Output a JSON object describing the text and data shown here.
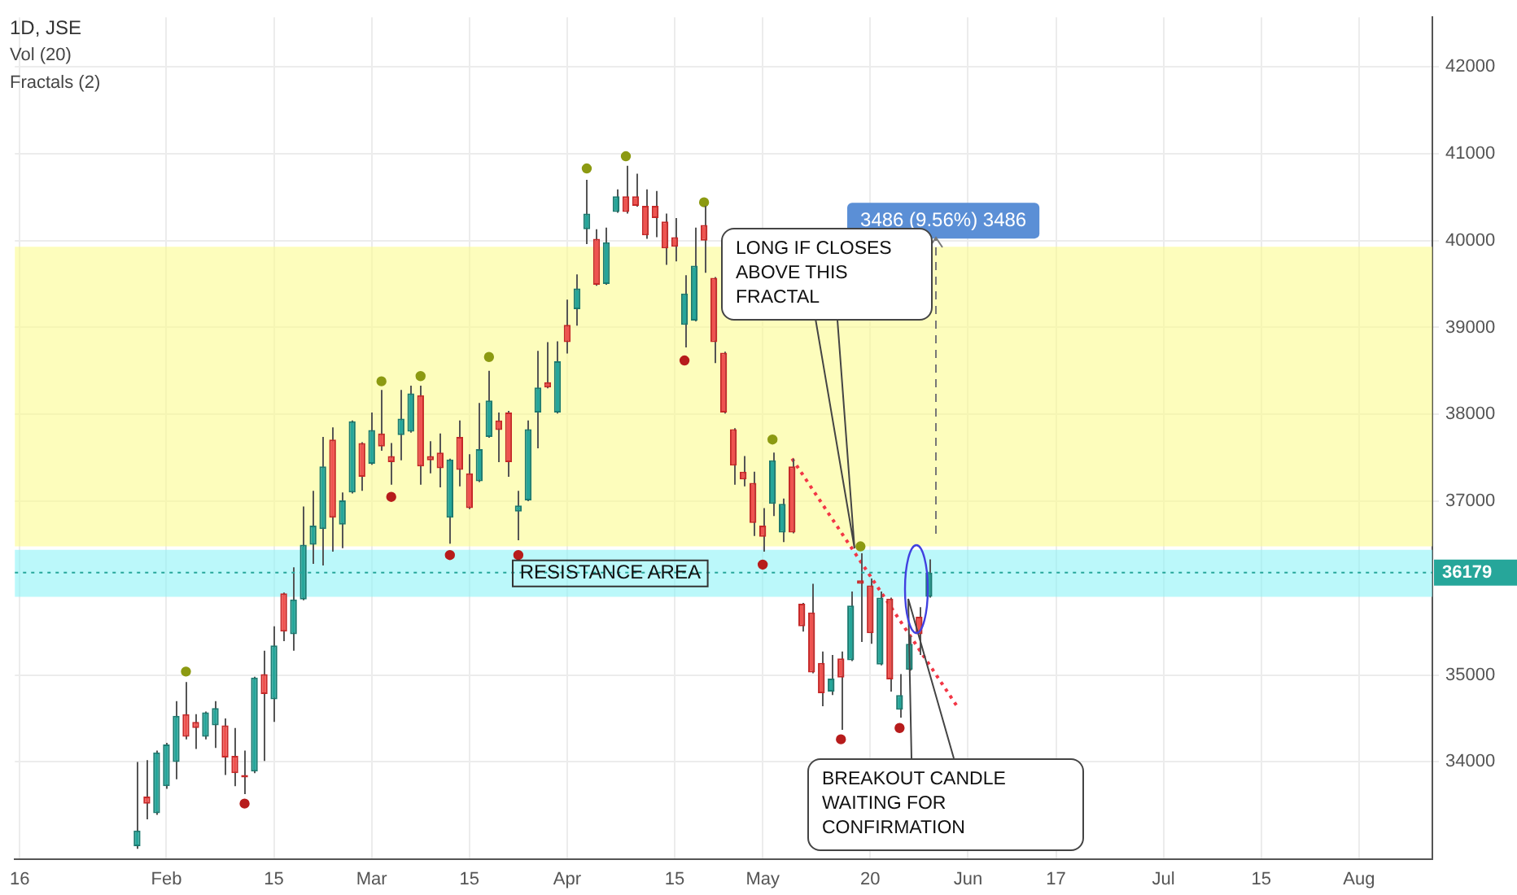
{
  "chart_data": {
    "type": "candlestick",
    "title": "1D, JSE",
    "categories": [
      "16",
      null,
      null,
      null,
      null,
      null,
      null,
      null,
      null,
      null,
      null,
      null,
      null,
      null,
      null,
      "Feb",
      null,
      null,
      null,
      null,
      null,
      null,
      null,
      null,
      null,
      null,
      "15",
      null,
      null,
      null,
      null,
      null,
      null,
      null,
      null,
      null,
      "Mar",
      null,
      null,
      null,
      null,
      null,
      null,
      null,
      null,
      null,
      "15",
      null,
      null,
      null,
      null,
      null,
      null,
      null,
      null,
      null,
      "Apr",
      null,
      null,
      null,
      null,
      null,
      null,
      null,
      null,
      null,
      null,
      "15",
      null,
      null,
      null,
      null,
      null,
      null,
      null,
      null,
      "May",
      null,
      null,
      null,
      null,
      null,
      null,
      null,
      null,
      null,
      null,
      "20",
      null,
      null,
      null,
      null,
      null,
      null,
      null,
      null,
      null,
      "Jun",
      null,
      null,
      null,
      null,
      null,
      null,
      null,
      null,
      "17",
      null,
      null,
      null,
      null,
      null,
      null,
      null,
      null,
      null,
      null,
      "Jul",
      null,
      null,
      null,
      null,
      null,
      null,
      null,
      null,
      null,
      "15",
      null,
      null,
      null,
      null,
      null,
      null,
      null,
      null,
      null,
      "Aug",
      null,
      null,
      null,
      null,
      null,
      null,
      null
    ],
    "ohlc": [
      null,
      null,
      null,
      null,
      null,
      null,
      null,
      null,
      null,
      null,
      null,
      null,
      [
        33030,
        34000,
        33000,
        33210
      ],
      [
        33600,
        34020,
        33340,
        33520
      ],
      [
        33410,
        34130,
        33390,
        34110
      ],
      [
        33720,
        34220,
        33690,
        34200
      ],
      [
        34000,
        34700,
        33800,
        34530
      ],
      [
        34550,
        34920,
        34260,
        34290
      ],
      [
        34460,
        34550,
        34150,
        34390
      ],
      [
        34290,
        34580,
        34260,
        34570
      ],
      [
        34420,
        34700,
        34160,
        34620
      ],
      [
        34420,
        34500,
        33850,
        34050
      ],
      [
        34070,
        34390,
        33720,
        33870
      ],
      [
        33850,
        34130,
        33630,
        33820
      ],
      [
        33890,
        34980,
        33870,
        34970
      ],
      [
        35010,
        35280,
        34010,
        34780
      ],
      [
        34720,
        35560,
        34460,
        35340
      ],
      [
        35940,
        35950,
        35390,
        35500
      ],
      [
        35470,
        36240,
        35280,
        35870
      ],
      [
        35870,
        36940,
        35860,
        36500
      ],
      [
        36500,
        37120,
        36280,
        36720
      ],
      [
        36680,
        37740,
        36260,
        37400
      ],
      [
        37710,
        37850,
        36420,
        36810
      ],
      [
        36730,
        37100,
        36460,
        37010
      ],
      [
        37100,
        37930,
        37090,
        37920
      ],
      [
        37670,
        37680,
        37120,
        37280
      ],
      [
        37430,
        38020,
        37420,
        37820
      ],
      [
        37780,
        38280,
        37580,
        37630
      ],
      [
        37520,
        37670,
        37190,
        37450
      ],
      [
        37760,
        38280,
        37470,
        37950
      ],
      [
        37800,
        38330,
        37790,
        38240
      ],
      [
        38220,
        38330,
        37190,
        37400
      ],
      [
        37520,
        37690,
        37320,
        37470
      ],
      [
        37560,
        37780,
        37160,
        37380
      ],
      [
        36810,
        37490,
        36510,
        37480
      ],
      [
        37740,
        37930,
        37170,
        37360
      ],
      [
        37320,
        37540,
        36910,
        36920
      ],
      [
        37230,
        38130,
        37220,
        37600
      ],
      [
        37740,
        38500,
        37730,
        38160
      ],
      [
        37930,
        38020,
        37450,
        37820
      ],
      [
        38020,
        38040,
        37280,
        37450
      ],
      [
        36880,
        37120,
        36550,
        36950
      ],
      [
        37010,
        37930,
        37000,
        37830
      ],
      [
        38020,
        38730,
        37610,
        38310
      ],
      [
        38370,
        38830,
        38300,
        38310
      ],
      [
        38020,
        38840,
        38010,
        38610
      ],
      [
        39030,
        39320,
        38700,
        38830
      ],
      [
        39210,
        39610,
        39020,
        39450
      ],
      [
        40130,
        40700,
        39960,
        40310
      ],
      [
        40020,
        40130,
        39480,
        39490
      ],
      [
        39500,
        40150,
        39490,
        39980
      ],
      [
        40330,
        40590,
        40320,
        40510
      ],
      [
        40510,
        40860,
        40310,
        40330
      ],
      [
        40510,
        40770,
        40390,
        40400
      ],
      [
        40400,
        40590,
        40020,
        40060
      ],
      [
        40400,
        40570,
        40040,
        40260
      ],
      [
        40220,
        40310,
        39720,
        39910
      ],
      [
        40040,
        40260,
        39760,
        39930
      ],
      [
        39030,
        39600,
        38770,
        39390
      ],
      [
        39080,
        40150,
        39070,
        39710
      ],
      [
        40180,
        40400,
        39630,
        40000
      ],
      [
        39570,
        39580,
        38590,
        38830
      ],
      [
        38710,
        38720,
        38010,
        38020
      ],
      [
        37830,
        37840,
        37190,
        37410
      ],
      [
        37340,
        37520,
        37170,
        37250
      ],
      [
        37210,
        37340,
        36600,
        36750
      ],
      [
        36720,
        36920,
        36420,
        36590
      ],
      [
        36970,
        37560,
        36830,
        37470
      ],
      [
        36640,
        37030,
        36530,
        36970
      ],
      [
        37400,
        37490,
        36630,
        36640
      ],
      [
        35820,
        35830,
        35500,
        35560
      ],
      [
        35720,
        36050,
        35020,
        35030
      ],
      [
        35140,
        35270,
        34640,
        34790
      ],
      [
        34810,
        35230,
        34770,
        34960
      ],
      [
        35190,
        35270,
        34370,
        34970
      ],
      [
        35170,
        35960,
        35160,
        35800
      ],
      [
        36090,
        36400,
        35380,
        36050
      ],
      [
        36030,
        36110,
        35360,
        35480
      ],
      [
        35120,
        35960,
        35110,
        35890
      ],
      [
        35880,
        35890,
        34810,
        34950
      ],
      [
        34600,
        35010,
        34510,
        34770
      ],
      [
        35060,
        35450,
        35050,
        35360
      ],
      [
        35670,
        35780,
        35230,
        35470
      ],
      [
        35900,
        36330,
        35890,
        36179
      ],
      null,
      null,
      null,
      null,
      null,
      null,
      null,
      null,
      null,
      null,
      null,
      null,
      null,
      null,
      null,
      null,
      null,
      null,
      null,
      null,
      null,
      null,
      null,
      null,
      null,
      null,
      null,
      null,
      null,
      null,
      null,
      null,
      null,
      null,
      null,
      null,
      null,
      null,
      null,
      null,
      null,
      null,
      null,
      null,
      null,
      null,
      null,
      null,
      null,
      null,
      null
    ],
    "series": [
      {
        "type": "scatter",
        "color": "#8c9a12",
        "marker": "circle",
        "values": [
          null,
          null,
          null,
          null,
          null,
          null,
          null,
          null,
          null,
          null,
          null,
          null,
          null,
          null,
          null,
          null,
          null,
          35040,
          null,
          null,
          null,
          null,
          null,
          null,
          null,
          null,
          null,
          null,
          null,
          null,
          null,
          null,
          null,
          null,
          null,
          null,
          null,
          38380,
          null,
          null,
          null,
          38440,
          null,
          null,
          null,
          null,
          null,
          null,
          38660,
          null,
          null,
          null,
          null,
          null,
          null,
          null,
          null,
          null,
          40830,
          null,
          null,
          null,
          40970,
          null,
          null,
          null,
          null,
          null,
          null,
          null,
          40440,
          null,
          null,
          null,
          null,
          null,
          null,
          37710,
          null,
          null,
          null,
          null,
          null,
          null,
          null,
          null,
          36480,
          null,
          null,
          null,
          null,
          null,
          null,
          null,
          null,
          null,
          null,
          null,
          null,
          null,
          null,
          null,
          null,
          null,
          null,
          null,
          null,
          null,
          null,
          null,
          null,
          null,
          null,
          null,
          null,
          null,
          null,
          null,
          null,
          null,
          null,
          null,
          null,
          null,
          null,
          null,
          null,
          null,
          null,
          null,
          null,
          null,
          null,
          null,
          null,
          null,
          null,
          null,
          null,
          null,
          null,
          null,
          null,
          null,
          null
        ]
      },
      {
        "type": "scatter",
        "color": "#b71c1c",
        "marker": "circle",
        "values": [
          null,
          null,
          null,
          null,
          null,
          null,
          null,
          null,
          null,
          null,
          null,
          null,
          null,
          null,
          null,
          null,
          null,
          null,
          null,
          null,
          null,
          null,
          null,
          33520,
          null,
          null,
          null,
          null,
          null,
          null,
          null,
          null,
          null,
          null,
          null,
          null,
          null,
          null,
          37050,
          null,
          null,
          null,
          null,
          null,
          36380,
          null,
          null,
          null,
          null,
          null,
          null,
          36380,
          null,
          null,
          null,
          null,
          null,
          null,
          null,
          null,
          null,
          null,
          null,
          null,
          null,
          null,
          null,
          null,
          38620,
          null,
          null,
          null,
          null,
          null,
          null,
          null,
          36270,
          null,
          null,
          null,
          null,
          null,
          null,
          null,
          34260,
          null,
          null,
          null,
          null,
          null,
          34390,
          null,
          null,
          null,
          null,
          null,
          null,
          null,
          null,
          null,
          null,
          null,
          null,
          null,
          null,
          null,
          null,
          null,
          null,
          null,
          null,
          null,
          null,
          null,
          null,
          null,
          null,
          null,
          null,
          null,
          null,
          null,
          null,
          null,
          null,
          null,
          null,
          null,
          null,
          null,
          null,
          null,
          null,
          null,
          null,
          null,
          null,
          null,
          null,
          null,
          null,
          null,
          null,
          null,
          null
        ]
      },
      {
        "type": "line",
        "color": "#f23645",
        "line_style": "dotted",
        "values": [
          null,
          null,
          null,
          null,
          null,
          null,
          null,
          null,
          null,
          null,
          null,
          null,
          null,
          null,
          null,
          null,
          null,
          null,
          null,
          null,
          null,
          null,
          null,
          null,
          null,
          null,
          null,
          null,
          null,
          null,
          null,
          null,
          null,
          null,
          null,
          null,
          null,
          null,
          null,
          null,
          null,
          null,
          null,
          null,
          null,
          null,
          null,
          null,
          null,
          null,
          null,
          null,
          null,
          null,
          null,
          null,
          null,
          null,
          null,
          null,
          null,
          null,
          null,
          null,
          null,
          null,
          null,
          null,
          null,
          null,
          null,
          null,
          null,
          null,
          null,
          null,
          null,
          null,
          null,
          37490,
          null,
          null,
          null,
          null,
          null,
          null,
          null,
          null,
          null,
          null,
          null,
          null,
          null,
          null,
          null,
          null,
          34620,
          null,
          null,
          null,
          null,
          null,
          null,
          null,
          null,
          null,
          null,
          null,
          null,
          null,
          null,
          null,
          null,
          null,
          null,
          null,
          null,
          null,
          null,
          null,
          null,
          null,
          null,
          null,
          null,
          null,
          null,
          null,
          null,
          null,
          null,
          null,
          null,
          null,
          null,
          null,
          null,
          null,
          null,
          null,
          null,
          null,
          null,
          null,
          null
        ]
      }
    ],
    "ylim": [
      32880,
      42570
    ],
    "yticks": [
      34000,
      35000,
      37000,
      38000,
      39000,
      40000,
      41000,
      42000
    ],
    "grid": true,
    "legend": false,
    "bands": [
      {
        "axis": "y",
        "from": 35900,
        "to": 36440,
        "label": "RESISTANCE AREA",
        "color": "#8ef3f6"
      },
      {
        "axis": "y",
        "from": 36480,
        "to": 39930,
        "label": "3486 (9.56%) 3486",
        "color": "#fbfb8f"
      }
    ],
    "ref_lines": [
      {
        "axis": "y",
        "value": 36179,
        "label": "36179",
        "color": "#26a69a",
        "line_style": "dotted"
      }
    ],
    "annotations": [
      "Vol (20)",
      "Fractals (2)",
      "LONG IF CLOSES ABOVE THIS FRACTAL",
      "BREAKOUT CANDLE WAITING FOR CONFIRMATION"
    ]
  }
}
